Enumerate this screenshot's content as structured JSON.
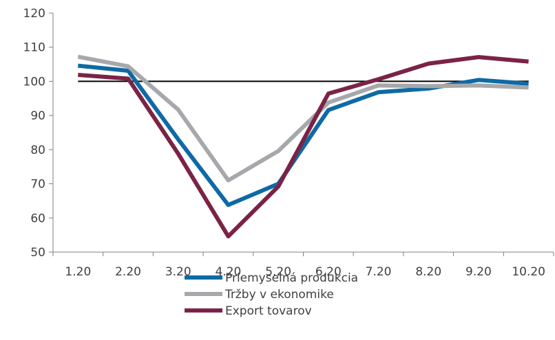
{
  "chart_data": {
    "type": "line",
    "categories": [
      "1.20",
      "2.20",
      "3.20",
      "4.20",
      "5.20",
      "6.20",
      "7.20",
      "8.20",
      "9.20",
      "10.20"
    ],
    "ylim": [
      50,
      120
    ],
    "yticks": [
      50,
      60,
      70,
      80,
      90,
      100,
      110,
      120
    ],
    "grid": false,
    "legend_position": "bottom",
    "reference_line": {
      "value": 100,
      "color": "#000000"
    },
    "series": [
      {
        "name": "Priemyselná produkcia",
        "color": "#0E6AA5",
        "values": [
          104.6,
          103.1,
          83.0,
          63.8,
          70.0,
          91.6,
          96.8,
          97.9,
          100.4,
          99.3
        ]
      },
      {
        "name": "Tržby v ekonomike",
        "color": "#A6A8AB",
        "values": [
          107.2,
          104.4,
          91.7,
          71.0,
          79.6,
          93.8,
          98.8,
          98.6,
          98.8,
          98.2
        ]
      },
      {
        "name": "Export tovarov",
        "color": "#7B2346",
        "values": [
          101.9,
          100.8,
          78.8,
          54.6,
          69.2,
          96.4,
          100.6,
          105.2,
          107.1,
          105.8
        ]
      }
    ]
  }
}
